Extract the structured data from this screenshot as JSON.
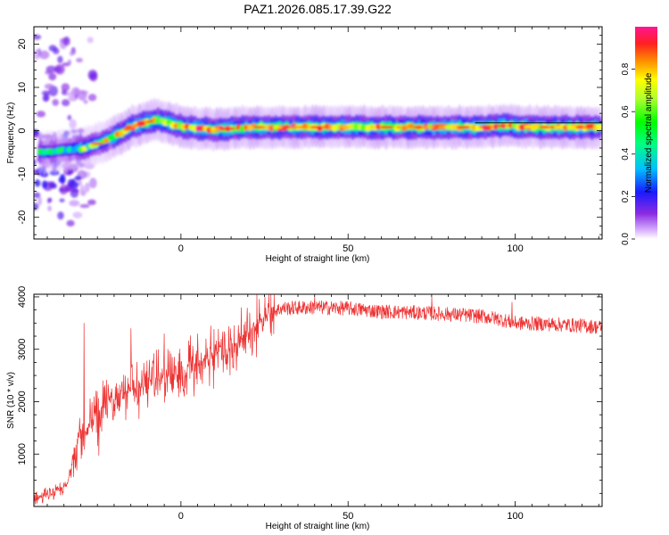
{
  "chart_data": [
    {
      "type": "heatmap",
      "title": "PAZ1.2026.085.17.39.G22",
      "xlabel": "Height of straight line (km)",
      "ylabel": "Frequency (Hz)",
      "xlim": [
        -44,
        126
      ],
      "ylim": [
        -25,
        24
      ],
      "xticks": [
        0,
        50,
        100
      ],
      "yticks": [
        -20,
        -10,
        0,
        10,
        20
      ],
      "colorbar": {
        "label": "Normalized spectral amplitude",
        "range": [
          0,
          1
        ],
        "ticks": [
          0.0,
          0.2,
          0.4,
          0.6,
          0.8
        ],
        "tick_labels": [
          "0.0",
          "0.2",
          "0.4",
          "0.6",
          "0.8"
        ]
      },
      "ridge": {
        "description_points": [
          [
            -40,
            -5
          ],
          [
            -35,
            -4.5
          ],
          [
            -30,
            -4.2
          ],
          [
            -25,
            -3
          ],
          [
            -20,
            -1.5
          ],
          [
            -15,
            0.8
          ],
          [
            -10,
            2
          ],
          [
            -7,
            2.5
          ],
          [
            -5,
            2
          ],
          [
            0,
            1
          ],
          [
            5,
            0.5
          ],
          [
            10,
            0.3
          ],
          [
            15,
            0.5
          ],
          [
            20,
            0.8
          ],
          [
            30,
            0.8
          ],
          [
            50,
            0.8
          ],
          [
            70,
            0.8
          ],
          [
            90,
            0.8
          ],
          [
            97,
            1.2
          ],
          [
            100,
            1
          ],
          [
            110,
            0.8
          ],
          [
            126,
            0.8
          ]
        ]
      }
    },
    {
      "type": "line",
      "xlabel": "Height of straight line (km)",
      "ylabel": "SNR (10 * v/v)",
      "xlim": [
        -44,
        126
      ],
      "ylim": [
        0,
        4050
      ],
      "xticks": [
        0,
        50,
        100
      ],
      "yticks": [
        1000,
        2000,
        3000,
        4000
      ],
      "series": [
        {
          "color": "#ee3333",
          "envelope": [
            [
              -44,
              150
            ],
            [
              -38,
              250
            ],
            [
              -34,
              400
            ],
            [
              -32,
              1100
            ],
            [
              -30,
              1300
            ],
            [
              -28,
              1500
            ],
            [
              -25,
              1900
            ],
            [
              -20,
              2000
            ],
            [
              -15,
              2200
            ],
            [
              -10,
              2400
            ],
            [
              -5,
              2450
            ],
            [
              0,
              2600
            ],
            [
              5,
              2750
            ],
            [
              10,
              2900
            ],
            [
              15,
              3050
            ],
            [
              20,
              3300
            ],
            [
              25,
              3650
            ],
            [
              30,
              3780
            ],
            [
              40,
              3800
            ],
            [
              50,
              3780
            ],
            [
              60,
              3720
            ],
            [
              70,
              3700
            ],
            [
              80,
              3670
            ],
            [
              90,
              3630
            ],
            [
              95,
              3580
            ],
            [
              100,
              3500
            ],
            [
              110,
              3480
            ],
            [
              120,
              3450
            ],
            [
              126,
              3420
            ]
          ],
          "spikes": [
            [
              -29,
              3500
            ],
            [
              -15,
              3400
            ],
            [
              -5,
              3300
            ],
            [
              5,
              3300
            ],
            [
              12,
              3200
            ],
            [
              18,
              3800
            ],
            [
              40,
              4000
            ],
            [
              75,
              4000
            ],
            [
              99,
              3900
            ]
          ]
        }
      ]
    }
  ]
}
